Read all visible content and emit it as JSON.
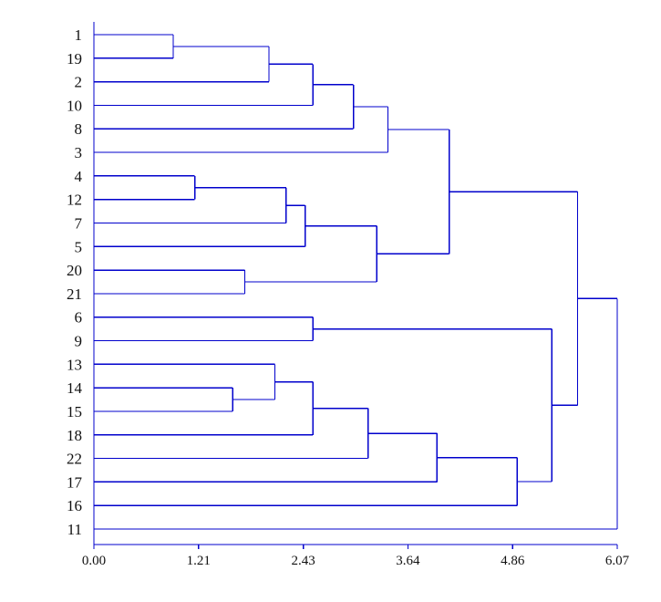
{
  "chart_data": {
    "type": "dendrogram",
    "orientation": "horizontal",
    "title": "",
    "xlabel": "",
    "ylabel": "",
    "color": "#0000cc",
    "xlim": [
      0,
      6.07
    ],
    "x_ticks": [
      "0.00",
      "1.21",
      "2.43",
      "3.64",
      "4.86",
      "6.07"
    ],
    "leaves": [
      "1",
      "19",
      "2",
      "10",
      "8",
      "3",
      "4",
      "12",
      "7",
      "5",
      "20",
      "21",
      "6",
      "9",
      "13",
      "14",
      "15",
      "18",
      "22",
      "17",
      "16",
      "11"
    ],
    "merges": [
      {
        "id": "m1",
        "left": "1",
        "right": "19",
        "height": 0.92
      },
      {
        "id": "m2",
        "left": "m1",
        "right": "2",
        "height": 2.03
      },
      {
        "id": "m3",
        "left": "m2",
        "right": "10",
        "height": 2.54
      },
      {
        "id": "m4",
        "left": "m3",
        "right": "8",
        "height": 3.01
      },
      {
        "id": "m5",
        "left": "m4",
        "right": "3",
        "height": 3.41
      },
      {
        "id": "m6",
        "left": "4",
        "right": "12",
        "height": 1.17
      },
      {
        "id": "m7",
        "left": "m6",
        "right": "7",
        "height": 2.23
      },
      {
        "id": "m8",
        "left": "m7",
        "right": "5",
        "height": 2.45
      },
      {
        "id": "m9",
        "left": "20",
        "right": "21",
        "height": 1.75
      },
      {
        "id": "m10",
        "left": "m8",
        "right": "m9",
        "height": 3.28
      },
      {
        "id": "m11",
        "left": "m5",
        "right": "m10",
        "height": 4.12
      },
      {
        "id": "m12",
        "left": "6",
        "right": "9",
        "height": 2.54
      },
      {
        "id": "m13",
        "left": "14",
        "right": "15",
        "height": 1.61
      },
      {
        "id": "m14",
        "left": "13",
        "right": "m13",
        "height": 2.1
      },
      {
        "id": "m15",
        "left": "m14",
        "right": "18",
        "height": 2.54
      },
      {
        "id": "m16",
        "left": "m15",
        "right": "22",
        "height": 3.18
      },
      {
        "id": "m17",
        "left": "m16",
        "right": "17",
        "height": 3.98
      },
      {
        "id": "m18",
        "left": "m17",
        "right": "16",
        "height": 4.91
      },
      {
        "id": "m19",
        "left": "m12",
        "right": "m18",
        "height": 5.31
      },
      {
        "id": "m20",
        "left": "m11",
        "right": "m19",
        "height": 5.61
      },
      {
        "id": "m21",
        "left": "m20",
        "right": "11",
        "height": 6.07
      }
    ]
  }
}
